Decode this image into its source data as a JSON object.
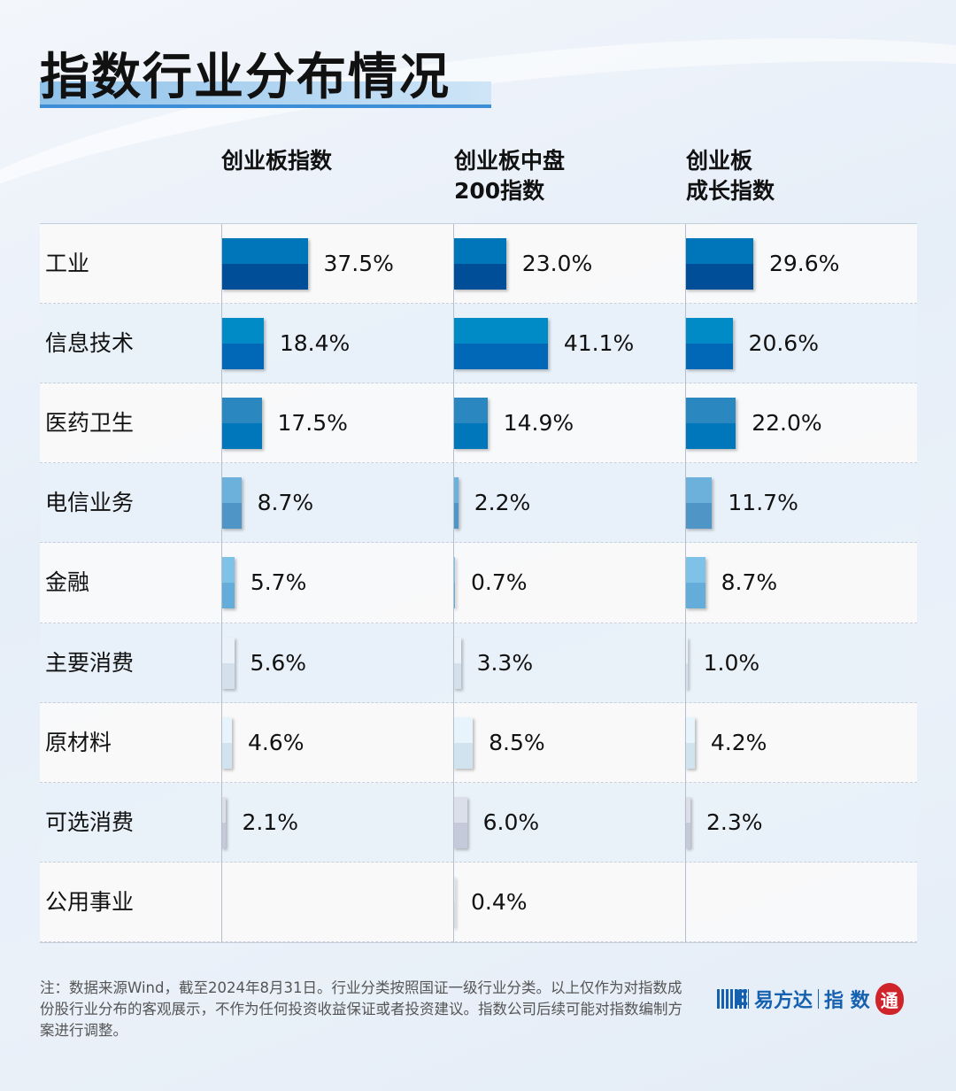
{
  "title": "指数行业分布情况",
  "chart_data": {
    "type": "bar",
    "orientation": "horizontal",
    "columns": [
      "创业板指数",
      "创业板中盘\n200指数",
      "创业板\n成长指数"
    ],
    "categories": [
      "工业",
      "信息技术",
      "医药卫生",
      "电信业务",
      "金融",
      "主要消费",
      "原材料",
      "可选消费",
      "公用事业"
    ],
    "series": [
      {
        "name": "创业板指数",
        "values": [
          37.5,
          18.4,
          17.5,
          8.7,
          5.7,
          5.6,
          4.6,
          2.1,
          null
        ]
      },
      {
        "name": "创业板中盘200指数",
        "values": [
          23.0,
          41.1,
          14.9,
          2.2,
          0.7,
          3.3,
          8.5,
          6.0,
          0.4
        ]
      },
      {
        "name": "创业板成长指数",
        "values": [
          29.6,
          20.6,
          22.0,
          11.7,
          8.7,
          1.0,
          4.2,
          2.3,
          null
        ]
      }
    ],
    "unit": "%",
    "row_colors": [
      [
        "#0076ba",
        "#004d98"
      ],
      [
        "#008ac6",
        "#0068b6"
      ],
      [
        "#2b87c0",
        "#0077ba"
      ],
      [
        "#6cb0dc",
        "#4f95c6"
      ],
      [
        "#7ec2e8",
        "#64acd9"
      ],
      [
        "#eaf1f8",
        "#d4e1ed"
      ],
      [
        "#e8f4fc",
        "#d2e3f0"
      ],
      [
        "#dcdfea",
        "#c5cadb"
      ],
      [
        "#e4e8ef",
        "#d6dbe4"
      ]
    ]
  },
  "note": "注：数据来源Wind，截至2024年8月31日。行业分类按照国证一级行业分类。以上仅作为对指数成份股行业分布的客观展示，不作为任何投资收益保证或者投资建议。指数公司后续可能对指数编制方案进行调整。",
  "logo": {
    "brand": "易方达",
    "sub": "指 数",
    "seal": "通"
  }
}
